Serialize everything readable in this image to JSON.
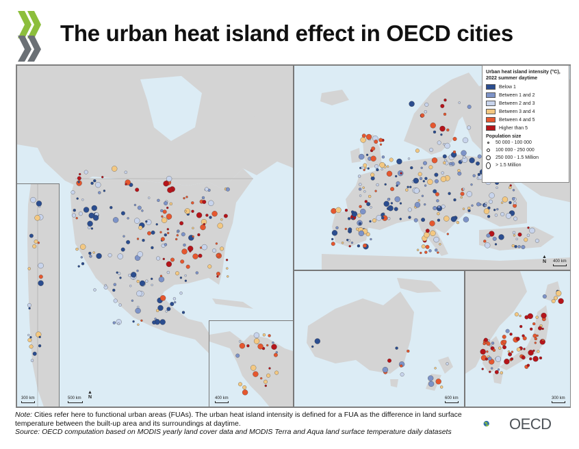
{
  "title": "The urban heat island effect in OECD cities",
  "legend": {
    "title": "Urban heat island intensity (°C), 2022 summer daytime",
    "classes": [
      {
        "label": "Below 1",
        "color": "#2b4d8f"
      },
      {
        "label": "Between 1 and 2",
        "color": "#7d93c8"
      },
      {
        "label": "Between 2 and 3",
        "color": "#c8d4ec"
      },
      {
        "label": "Between 3 and 4",
        "color": "#f3c882"
      },
      {
        "label": "Between 4 and 5",
        "color": "#e5572f"
      },
      {
        "label": "Higher than 5",
        "color": "#b5141a"
      }
    ],
    "population_title": "Population size",
    "population_classes": [
      "50 000 - 100 000",
      "100 000 - 250 000",
      "250 000 - 1.5 Million",
      "> 1.5 Million"
    ]
  },
  "scalebars": {
    "chile": "300 km",
    "north_america": "500 km",
    "colombia": "400 km",
    "europe": "400 km",
    "australia": "600 km",
    "japan_korea": "300 km"
  },
  "north_label": "N",
  "footer": {
    "note_label": "Note:",
    "note_text": " Cities refer here to functional urban areas (FUAs). The urban heat island intensity is defined for a FUA as the difference in land surface temperature between the built-up area and its surroundings at daytime.",
    "source": "Source: OECD computation based on MODIS yearly land cover data and MODIS Terra and Aqua land surface temperature daily datasets"
  },
  "logo_text": "OECD",
  "colors": {
    "land": "#d4d4d4",
    "water": "#dcecf5",
    "oecd_green": "#8cbe3c",
    "oecd_gray": "#5a5f64"
  }
}
